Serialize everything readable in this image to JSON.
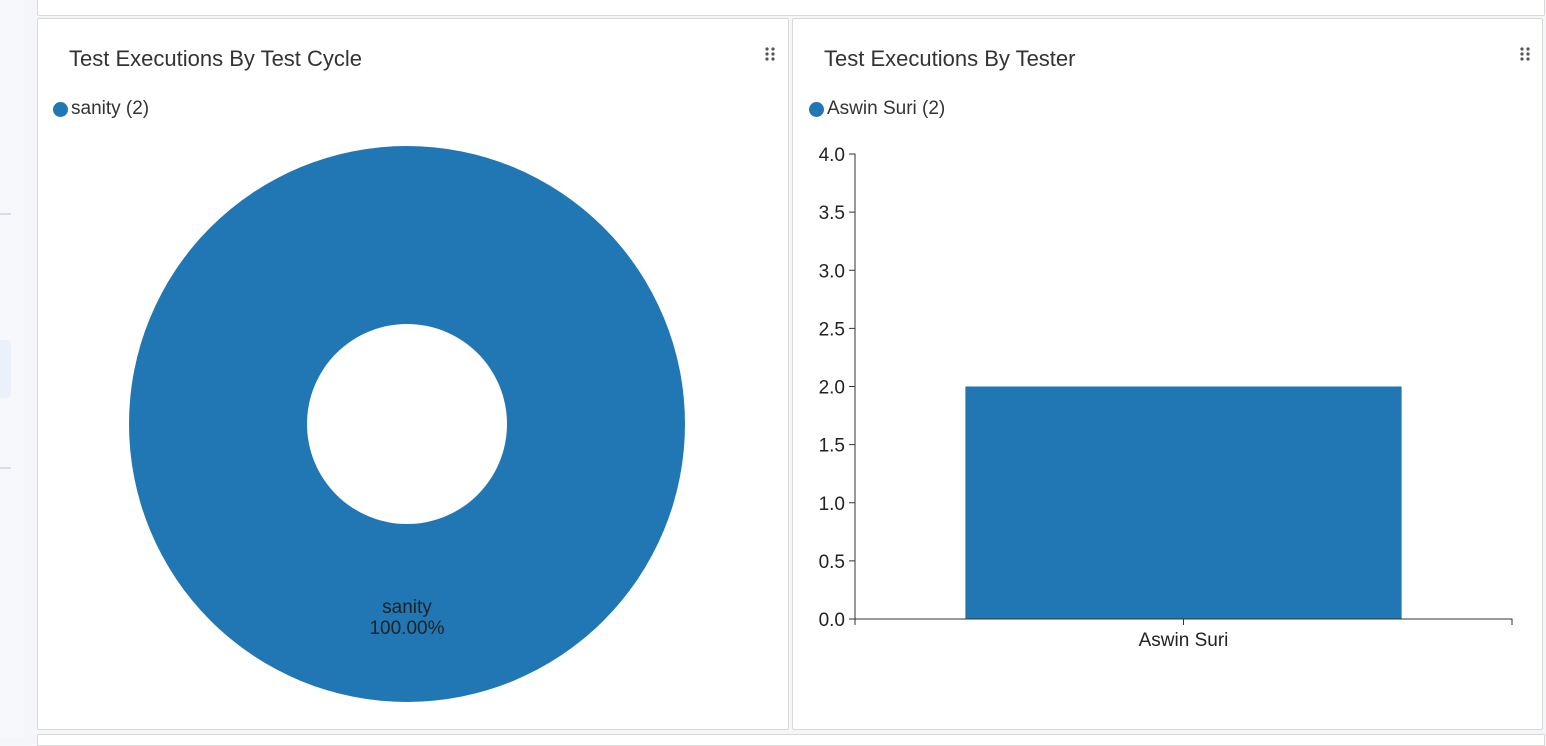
{
  "colors": {
    "series": "#2077b4",
    "axis": "#333333"
  },
  "panels": [
    {
      "title": "Test Executions By Test Cycle",
      "legend": [
        {
          "label": "sanity (2)",
          "color": "#2077b4"
        }
      ],
      "slice_label": "sanity",
      "slice_percent": "100.00%"
    },
    {
      "title": "Test Executions By Tester",
      "legend": [
        {
          "label": "Aswin Suri (2)",
          "color": "#2077b4"
        }
      ]
    }
  ],
  "chart_data": [
    {
      "type": "pie",
      "donut": true,
      "title": "Test Executions By Test Cycle",
      "categories": [
        "sanity"
      ],
      "values": [
        2
      ],
      "percent_labels": [
        "100.00%"
      ],
      "legend": [
        "sanity (2)"
      ],
      "legend_position": "top-left"
    },
    {
      "type": "bar",
      "title": "Test Executions By Tester",
      "categories": [
        "Aswin Suri"
      ],
      "values": [
        2
      ],
      "xlabel": "",
      "ylabel": "",
      "ylim": [
        0,
        4
      ],
      "yticks": [
        "0.0",
        "0.5",
        "1.0",
        "1.5",
        "2.0",
        "2.5",
        "3.0",
        "3.5",
        "4.0"
      ],
      "legend": [
        "Aswin Suri (2)"
      ],
      "legend_position": "top-left",
      "grid": false
    }
  ]
}
